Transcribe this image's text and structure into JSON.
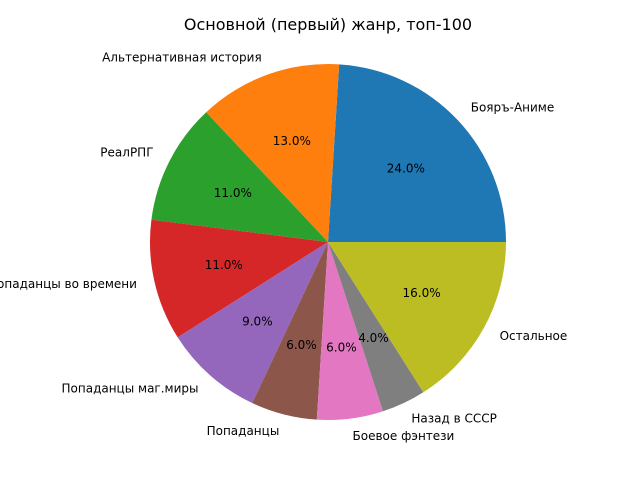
{
  "chart_data": {
    "type": "pie",
    "title": "Основной (первый) жанр, топ-100",
    "start_angle_deg": 0,
    "direction": "counterclockwise",
    "slices": [
      {
        "label": "Бояръ-Аниме",
        "value": 24.0,
        "pct_label": "24.0%",
        "color": "#1f77b4"
      },
      {
        "label": "Альтернативная история",
        "value": 13.0,
        "pct_label": "13.0%",
        "color": "#ff7f0e"
      },
      {
        "label": "РеалРПГ",
        "value": 11.0,
        "pct_label": "11.0%",
        "color": "#2ca02c"
      },
      {
        "label": "Попаданцы во времени",
        "value": 11.0,
        "pct_label": "11.0%",
        "color": "#d62728"
      },
      {
        "label": "Попаданцы маг.миры",
        "value": 9.0,
        "pct_label": "9.0%",
        "color": "#9467bd"
      },
      {
        "label": "Попаданцы",
        "value": 6.0,
        "pct_label": "6.0%",
        "color": "#8c564b"
      },
      {
        "label": "Боевое фэнтези",
        "value": 6.0,
        "pct_label": "6.0%",
        "color": "#e377c2"
      },
      {
        "label": "Назад в СССР",
        "value": 4.0,
        "pct_label": "4.0%",
        "color": "#7f7f7f"
      },
      {
        "label": "Остальное",
        "value": 16.0,
        "pct_label": "16.0%",
        "color": "#bcbd22"
      }
    ]
  }
}
